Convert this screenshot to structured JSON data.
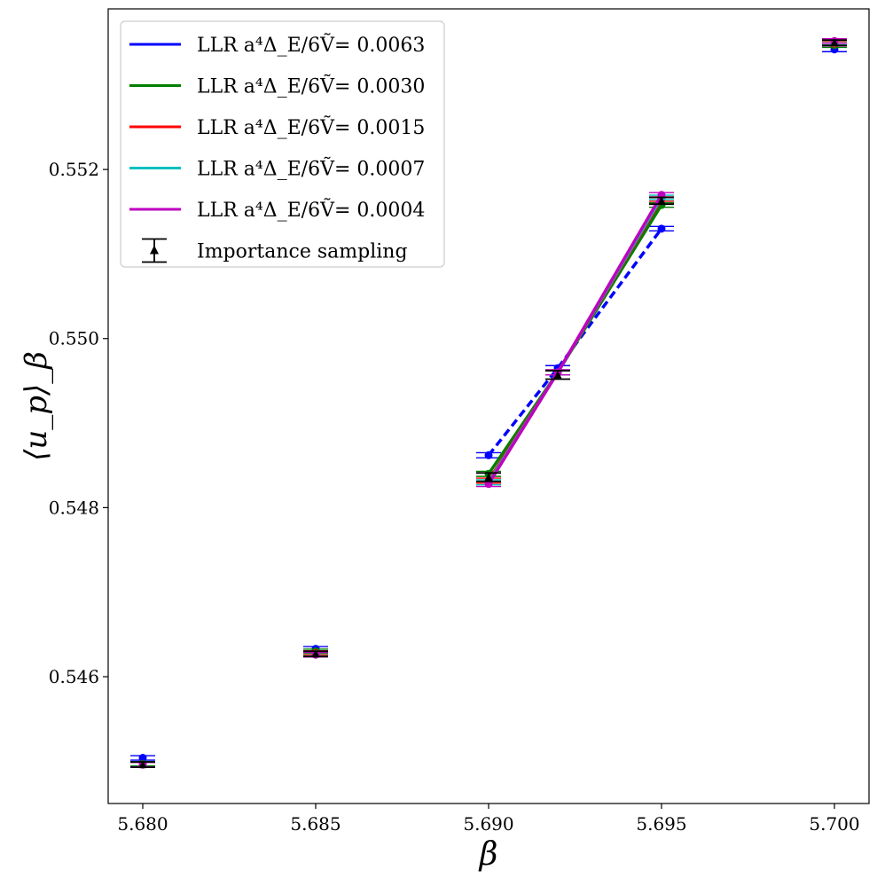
{
  "chart_data": {
    "type": "line",
    "xlabel": "β",
    "ylabel": "⟨u_p⟩_β",
    "xlim": [
      5.679,
      5.701
    ],
    "ylim": [
      0.5445,
      0.5539
    ],
    "x_ticks": [
      5.68,
      5.685,
      5.69,
      5.695,
      5.7
    ],
    "x_tick_labels": [
      "5.680",
      "5.685",
      "5.690",
      "5.695",
      "5.700"
    ],
    "y_ticks": [
      0.546,
      0.548,
      0.55,
      0.552
    ],
    "y_tick_labels": [
      "0.546",
      "0.548",
      "0.550",
      "0.552"
    ],
    "legend_position": "upper-left",
    "series": [
      {
        "name": "LLR a⁴Δ_E/6Ṽ= 0.0063",
        "color": "#0000ff",
        "points": [
          {
            "x": 5.68,
            "y": 0.54504,
            "err": 2e-05
          },
          {
            "x": 5.685,
            "y": 0.54633,
            "err": 2e-05
          },
          {
            "x": 5.69,
            "y": 0.54862,
            "err": 3e-05
          },
          {
            "x": 5.692,
            "y": 0.54965,
            "err": 3e-05
          },
          {
            "x": 5.695,
            "y": 0.5513,
            "err": 2e-05
          },
          {
            "x": 5.7,
            "y": 0.55342,
            "err": 2e-05
          }
        ],
        "curve": [
          [
            5.69,
            0.54862
          ],
          [
            5.692,
            0.54965
          ],
          [
            5.695,
            0.5513
          ]
        ]
      },
      {
        "name": "LLR a⁴Δ_E/6Ṽ= 0.0030",
        "color": "#008000",
        "points": [
          {
            "x": 5.68,
            "y": 0.54497,
            "err": 2e-05
          },
          {
            "x": 5.685,
            "y": 0.5463,
            "err": 2e-05
          },
          {
            "x": 5.69,
            "y": 0.5484,
            "err": 3e-05
          },
          {
            "x": 5.692,
            "y": 0.5496,
            "err": 3e-05
          },
          {
            "x": 5.695,
            "y": 0.55158,
            "err": 2e-05
          },
          {
            "x": 5.7,
            "y": 0.55347,
            "err": 2e-05
          }
        ],
        "curve": [
          [
            5.69,
            0.5484
          ],
          [
            5.692,
            0.5496
          ],
          [
            5.695,
            0.55158
          ]
        ]
      },
      {
        "name": "LLR a⁴Δ_E/6Ṽ= 0.0015",
        "color": "#ff0000",
        "points": [
          {
            "x": 5.68,
            "y": 0.54496,
            "err": 2e-05
          },
          {
            "x": 5.685,
            "y": 0.54628,
            "err": 2e-05
          },
          {
            "x": 5.69,
            "y": 0.54832,
            "err": 3e-05
          },
          {
            "x": 5.692,
            "y": 0.5496,
            "err": 3e-05
          },
          {
            "x": 5.695,
            "y": 0.55165,
            "err": 2e-05
          },
          {
            "x": 5.7,
            "y": 0.55349,
            "err": 2e-05
          }
        ],
        "curve": [
          [
            5.69,
            0.54832
          ],
          [
            5.692,
            0.5496
          ],
          [
            5.695,
            0.55165
          ]
        ]
      },
      {
        "name": "LLR a⁴Δ_E/6Ṽ= 0.0007",
        "color": "#00bfbf",
        "points": [
          {
            "x": 5.68,
            "y": 0.54496,
            "err": 2e-05
          },
          {
            "x": 5.685,
            "y": 0.54627,
            "err": 2e-05
          },
          {
            "x": 5.69,
            "y": 0.5483,
            "err": 3e-05
          },
          {
            "x": 5.692,
            "y": 0.5496,
            "err": 3e-05
          },
          {
            "x": 5.695,
            "y": 0.55167,
            "err": 2e-05
          },
          {
            "x": 5.7,
            "y": 0.5535,
            "err": 2e-05
          }
        ],
        "curve": [
          [
            5.69,
            0.5483
          ],
          [
            5.692,
            0.5496
          ],
          [
            5.695,
            0.55167
          ]
        ]
      },
      {
        "name": "LLR a⁴Δ_E/6Ṽ= 0.0004",
        "color": "#bf00bf",
        "points": [
          {
            "x": 5.68,
            "y": 0.54496,
            "err": 2e-05
          },
          {
            "x": 5.685,
            "y": 0.54626,
            "err": 2e-05
          },
          {
            "x": 5.69,
            "y": 0.54828,
            "err": 3e-05
          },
          {
            "x": 5.692,
            "y": 0.5496,
            "err": 3e-05
          },
          {
            "x": 5.695,
            "y": 0.5517,
            "err": 2e-05
          },
          {
            "x": 5.7,
            "y": 0.55352,
            "err": 2e-05
          }
        ],
        "curve": [
          [
            5.69,
            0.54828
          ],
          [
            5.692,
            0.5496
          ],
          [
            5.695,
            0.5517
          ]
        ]
      }
    ],
    "reference": {
      "name": "Importance sampling",
      "color": "#000000",
      "points": [
        {
          "x": 5.68,
          "y": 0.54496,
          "err": 2e-05
        },
        {
          "x": 5.685,
          "y": 0.54627,
          "err": 3e-05
        },
        {
          "x": 5.69,
          "y": 0.54836,
          "err": 5e-05
        },
        {
          "x": 5.692,
          "y": 0.54957,
          "err": 5e-05
        },
        {
          "x": 5.695,
          "y": 0.55163,
          "err": 4e-05
        },
        {
          "x": 5.7,
          "y": 0.5535,
          "err": 3e-05
        }
      ]
    }
  }
}
